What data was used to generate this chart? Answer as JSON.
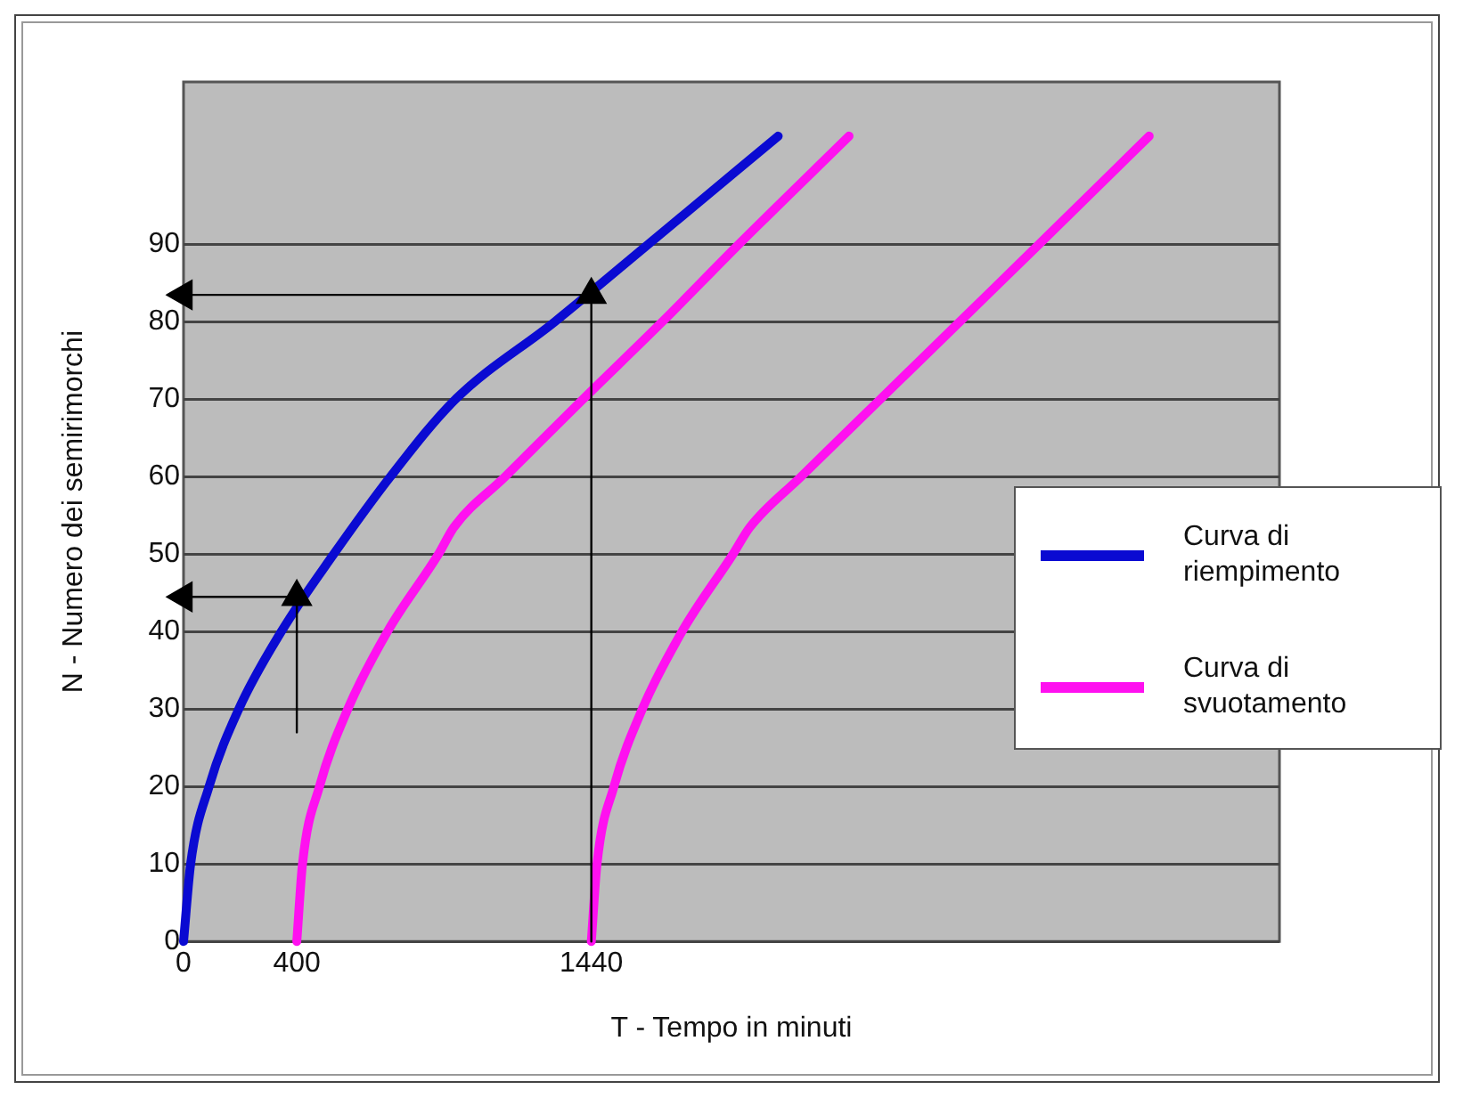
{
  "chart_data": {
    "type": "line",
    "xlabel": "T - Tempo in minuti",
    "ylabel": "N - Numero dei semirimorchi",
    "xlim": [
      0,
      3870
    ],
    "ylim": [
      0,
      111
    ],
    "xticks": [
      0,
      400,
      1440
    ],
    "yticks": [
      0,
      10,
      20,
      30,
      40,
      50,
      60,
      70,
      80,
      90
    ],
    "grid": "y",
    "legend": "right",
    "marker": "none",
    "series": [
      {
        "name": "Curva di riempimento",
        "color": "#0a0ad2",
        "x": [
          0,
          25,
          90,
          195,
          345,
          530,
          730,
          960,
          1310,
          1640,
          2100
        ],
        "values": [
          0,
          10,
          20,
          30,
          40,
          50,
          60,
          70,
          80,
          90,
          104
        ]
      },
      {
        "name": "Curva di svuotamento",
        "color": "#ff10f0",
        "x": [
          400,
          420,
          480,
          580,
          720,
          900,
          955,
          1135,
          1410,
          1690,
          1960,
          2350
        ],
        "values": [
          0,
          10,
          20,
          30,
          40,
          50,
          53.5,
          60,
          70,
          80,
          90,
          104
        ]
      },
      {
        "color": "#ff10f0",
        "x": [
          1440,
          1460,
          1520,
          1620,
          1760,
          1940,
          2000,
          2180,
          2460,
          2740,
          3020,
          3410
        ],
        "values": [
          0,
          10,
          20,
          30,
          40,
          50,
          53.5,
          60,
          70,
          80,
          90,
          104
        ]
      },
      {
        "color": "#000000",
        "marker": "triangle",
        "x": [
          400,
          400,
          0
        ],
        "values": [
          27,
          44.5,
          44.5
        ]
      },
      {
        "color": "#000000",
        "marker": "triangle",
        "x": [
          1440,
          1440,
          0
        ],
        "values": [
          0,
          83.5,
          83.5
        ]
      }
    ]
  }
}
